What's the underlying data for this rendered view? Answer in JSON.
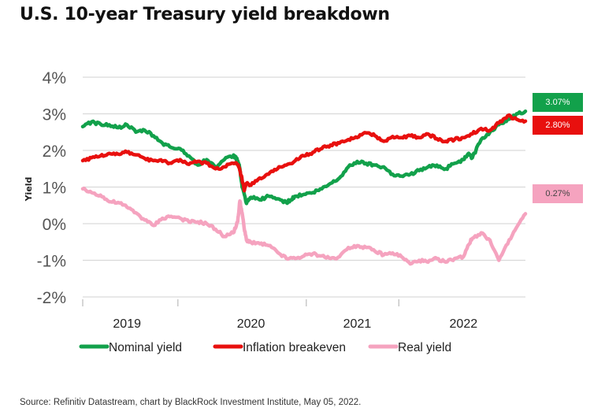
{
  "title": "U.S. 10-year Treasury yield breakdown",
  "source": "Source: Refinitiv Datastream, chart by BlackRock Investment Institute, May 05, 2022.",
  "colors": {
    "nominal": "#12a14b",
    "breakeven": "#e8100e",
    "real": "#f5a3bf",
    "grid": "#d9d9d9",
    "axis_text": "#555555"
  },
  "end_labels": [
    {
      "series": "Nominal yield",
      "text": "3.07%",
      "bg": "#12a14b",
      "fg": "#ffffff"
    },
    {
      "series": "Inflation breakeven",
      "text": "2.80%",
      "bg": "#e8100e",
      "fg": "#ffffff"
    },
    {
      "series": "Real yield",
      "text": "0.27%",
      "bg": "#f5a3bf",
      "fg": "#444444"
    }
  ],
  "chart_data": {
    "type": "line",
    "title": "U.S. 10-year Treasury yield breakdown",
    "xlabel": "",
    "ylabel": "Yield",
    "ylim": [
      -2,
      4
    ],
    "yticks": [
      4,
      3,
      2,
      1,
      0,
      -1,
      -2
    ],
    "ytick_labels": [
      "4%",
      "3%",
      "2%",
      "1%",
      "0%",
      "-1%",
      "-2%"
    ],
    "xlim": [
      0,
      1
    ],
    "xtick_labels": [
      "2019",
      "2020",
      "2021",
      "2022"
    ],
    "xtick_label_pos": [
      0.1,
      0.38,
      0.62,
      0.86
    ],
    "xtick_marks": [
      0.0,
      0.215,
      0.505,
      0.714
    ],
    "grid": true,
    "legend_position": "bottom",
    "series": [
      {
        "name": "Nominal yield",
        "x": [
          0.0,
          0.02,
          0.04,
          0.06,
          0.08,
          0.1,
          0.12,
          0.14,
          0.16,
          0.18,
          0.2,
          0.22,
          0.24,
          0.26,
          0.28,
          0.3,
          0.32,
          0.34,
          0.345,
          0.35,
          0.355,
          0.36,
          0.37,
          0.38,
          0.4,
          0.42,
          0.44,
          0.46,
          0.47,
          0.48,
          0.5,
          0.52,
          0.54,
          0.56,
          0.58,
          0.6,
          0.62,
          0.64,
          0.66,
          0.68,
          0.7,
          0.72,
          0.74,
          0.76,
          0.78,
          0.8,
          0.82,
          0.84,
          0.86,
          0.87,
          0.88,
          0.9,
          0.92,
          0.94,
          0.96,
          0.98,
          1.0
        ],
        "values": [
          2.65,
          2.78,
          2.72,
          2.7,
          2.62,
          2.7,
          2.5,
          2.55,
          2.4,
          2.2,
          2.08,
          2.05,
          1.85,
          1.6,
          1.75,
          1.55,
          1.75,
          1.85,
          1.82,
          1.72,
          1.5,
          1.0,
          0.55,
          0.72,
          0.65,
          0.75,
          0.68,
          0.58,
          0.65,
          0.75,
          0.8,
          0.85,
          0.95,
          1.1,
          1.25,
          1.55,
          1.7,
          1.65,
          1.6,
          1.55,
          1.35,
          1.3,
          1.35,
          1.45,
          1.55,
          1.6,
          1.5,
          1.65,
          1.75,
          1.9,
          1.8,
          2.3,
          2.5,
          2.7,
          2.85,
          3.0,
          3.07
        ]
      },
      {
        "name": "Inflation breakeven",
        "x": [
          0.0,
          0.02,
          0.04,
          0.06,
          0.08,
          0.1,
          0.12,
          0.14,
          0.16,
          0.18,
          0.2,
          0.22,
          0.24,
          0.26,
          0.28,
          0.3,
          0.32,
          0.34,
          0.35,
          0.355,
          0.36,
          0.365,
          0.37,
          0.38,
          0.4,
          0.42,
          0.44,
          0.46,
          0.48,
          0.5,
          0.52,
          0.54,
          0.56,
          0.58,
          0.6,
          0.62,
          0.64,
          0.66,
          0.68,
          0.7,
          0.72,
          0.74,
          0.76,
          0.78,
          0.8,
          0.82,
          0.84,
          0.86,
          0.88,
          0.9,
          0.92,
          0.94,
          0.96,
          0.98,
          1.0
        ],
        "values": [
          1.72,
          1.8,
          1.85,
          1.92,
          1.9,
          1.95,
          1.88,
          1.78,
          1.72,
          1.7,
          1.65,
          1.75,
          1.62,
          1.7,
          1.65,
          1.5,
          1.55,
          1.65,
          1.62,
          1.45,
          1.2,
          0.9,
          1.1,
          1.05,
          1.25,
          1.35,
          1.5,
          1.6,
          1.72,
          1.85,
          1.95,
          2.05,
          2.15,
          2.2,
          2.3,
          2.35,
          2.48,
          2.4,
          2.25,
          2.38,
          2.35,
          2.4,
          2.35,
          2.45,
          2.32,
          2.25,
          2.3,
          2.35,
          2.45,
          2.6,
          2.55,
          2.75,
          2.95,
          2.85,
          2.8
        ]
      },
      {
        "name": "Real yield",
        "x": [
          0.0,
          0.02,
          0.04,
          0.06,
          0.08,
          0.1,
          0.12,
          0.14,
          0.16,
          0.18,
          0.2,
          0.22,
          0.24,
          0.26,
          0.28,
          0.3,
          0.32,
          0.34,
          0.35,
          0.355,
          0.36,
          0.365,
          0.37,
          0.38,
          0.4,
          0.42,
          0.44,
          0.46,
          0.48,
          0.5,
          0.52,
          0.54,
          0.56,
          0.58,
          0.6,
          0.62,
          0.64,
          0.66,
          0.68,
          0.7,
          0.72,
          0.74,
          0.76,
          0.78,
          0.8,
          0.82,
          0.84,
          0.86,
          0.87,
          0.88,
          0.9,
          0.92,
          0.94,
          0.96,
          0.98,
          1.0
        ],
        "values": [
          0.95,
          0.85,
          0.78,
          0.6,
          0.58,
          0.45,
          0.3,
          0.1,
          -0.05,
          0.15,
          0.2,
          0.15,
          0.05,
          0.05,
          0.0,
          -0.15,
          -0.35,
          -0.25,
          0.05,
          0.62,
          0.3,
          -0.15,
          -0.45,
          -0.5,
          -0.55,
          -0.6,
          -0.78,
          -0.95,
          -0.95,
          -0.88,
          -0.82,
          -0.88,
          -0.95,
          -0.9,
          -0.65,
          -0.6,
          -0.65,
          -0.75,
          -0.85,
          -0.8,
          -0.9,
          -1.1,
          -1.0,
          -1.05,
          -0.95,
          -1.05,
          -0.95,
          -0.9,
          -0.6,
          -0.4,
          -0.25,
          -0.45,
          -1.0,
          -0.55,
          -0.1,
          0.27
        ]
      }
    ]
  },
  "legend": [
    {
      "label": "Nominal yield",
      "color": "#12a14b"
    },
    {
      "label": "Inflation breakeven",
      "color": "#e8100e"
    },
    {
      "label": "Real yield",
      "color": "#f5a3bf"
    }
  ]
}
